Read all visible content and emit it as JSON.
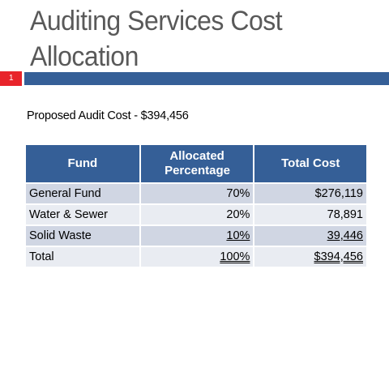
{
  "slide": {
    "title": "Auditing Services Cost Allocation",
    "number": "1",
    "subtitle": "Proposed Audit Cost - $394,456"
  },
  "table": {
    "headers": [
      "Fund",
      "Allocated Percentage",
      "Total Cost"
    ],
    "rows": [
      {
        "fund": "General Fund",
        "percentage": "70%",
        "cost": "$276,119"
      },
      {
        "fund": "Water & Sewer",
        "percentage": "20%",
        "cost": "78,891"
      },
      {
        "fund": "Solid Waste",
        "percentage": "10%",
        "cost": "39,446"
      },
      {
        "fund": "Total",
        "percentage": "100%",
        "cost": "$394,456"
      }
    ]
  },
  "colors": {
    "accent": "#355f97",
    "slide_number_bg": "#e8242b",
    "title_text": "#595959",
    "row_dark": "#d0d6e3",
    "row_light": "#e9ecf2"
  }
}
